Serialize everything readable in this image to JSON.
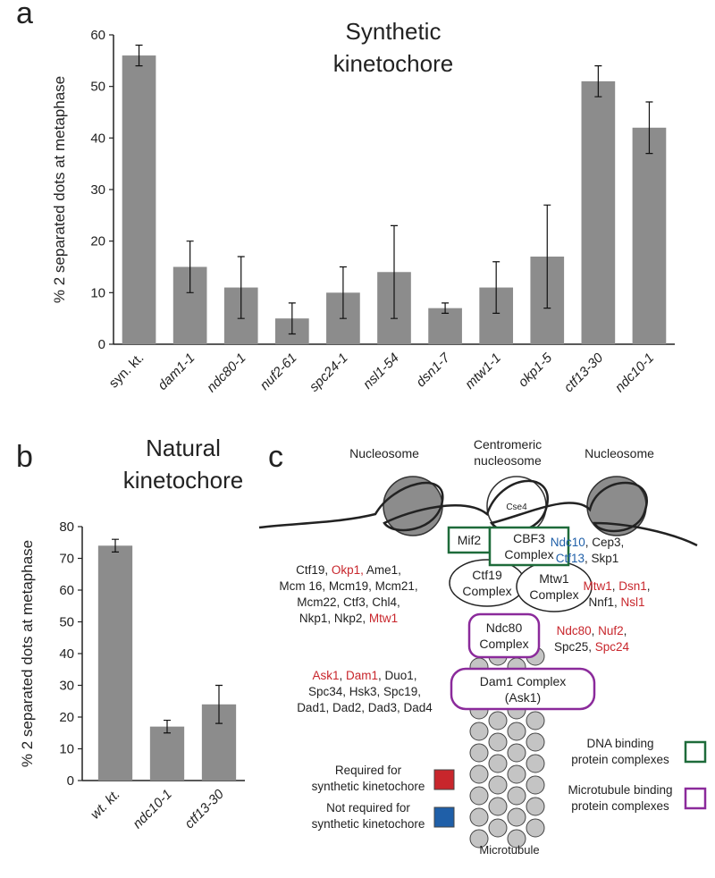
{
  "chart_data": [
    {
      "type": "bar",
      "panel": "a",
      "title": [
        "Synthetic",
        "kinetochore"
      ],
      "y_label": "% 2 separated dots at metaphase",
      "categories": [
        "syn. kt.",
        "dam1-1",
        "ndc80-1",
        "nuf2-61",
        "spc24-1",
        "nsl1-54",
        "dsn1-7",
        "mtw1-1",
        "okp1-5",
        "ctf13-30",
        "ndc10-1"
      ],
      "values": [
        56,
        15,
        11,
        5,
        10,
        14,
        7,
        11,
        17,
        51,
        42
      ],
      "errors": [
        2,
        5,
        6,
        3,
        5,
        9,
        1,
        5,
        10,
        3,
        5
      ],
      "color": "#8c8c8c",
      "ylim": [
        0,
        60
      ],
      "yticks": [
        0,
        10,
        20,
        30,
        40,
        50,
        60
      ]
    },
    {
      "type": "bar",
      "panel": "b",
      "title": [
        "Natural",
        "kinetochore"
      ],
      "y_label": "% 2 separated dots at metaphase",
      "categories": [
        "wt. kt.",
        "ndc10-1",
        "ctf13-30"
      ],
      "values": [
        74,
        17,
        24
      ],
      "errors": [
        2,
        2,
        6
      ],
      "color": "#8c8c8c",
      "ylim": [
        0,
        80
      ],
      "yticks": [
        0,
        10,
        20,
        30,
        40,
        50,
        60,
        70,
        80
      ]
    }
  ],
  "diagram": {
    "panel": "c",
    "headers": {
      "left": "Nucleosome",
      "center": [
        "Centromeric",
        "nucleosome"
      ],
      "right": "Nucleosome"
    },
    "histone": "Cse4",
    "complexes": {
      "mif2": "Mif2",
      "cbf3": [
        "CBF3",
        "Complex"
      ],
      "ctf19": [
        "Ctf19",
        "Complex"
      ],
      "mtw1": [
        "Mtw1",
        "Complex"
      ],
      "ndc80": [
        "Ndc80",
        "Complex"
      ],
      "dam1": [
        "Dam1 Complex",
        "(Ask1)"
      ]
    },
    "microtubule": "Microtubule",
    "gene_groups": [
      [
        [
          {
            "text": "Ndc10",
            "color": "#1f5fa8"
          },
          {
            "text": ", Cep3,",
            "color": "#222222"
          }
        ],
        [
          {
            "text": "Ctf13",
            "color": "#1f5fa8"
          },
          {
            "text": ", Skp1",
            "color": "#222222"
          }
        ]
      ],
      [
        [
          {
            "text": "Ctf19, ",
            "color": "#222222"
          },
          {
            "text": "Okp1,",
            "color": "#c8262c"
          },
          {
            "text": " Ame1,",
            "color": "#222222"
          }
        ],
        [
          {
            "text": "Mcm 16, Mcm19, Mcm21,",
            "color": "#222222"
          }
        ],
        [
          {
            "text": "Mcm22, Ctf3, Chl4,",
            "color": "#222222"
          }
        ],
        [
          {
            "text": "Nkp1, Nkp2, ",
            "color": "#222222"
          },
          {
            "text": "Mtw1",
            "color": "#c8262c"
          }
        ]
      ],
      [
        [
          {
            "text": "Mtw1",
            "color": "#c8262c"
          },
          {
            "text": ", ",
            "color": "#222222"
          },
          {
            "text": "Dsn1",
            "color": "#c8262c"
          },
          {
            "text": ",",
            "color": "#222222"
          }
        ],
        [
          {
            "text": "Nnf1, ",
            "color": "#222222"
          },
          {
            "text": "Nsl1",
            "color": "#c8262c"
          }
        ]
      ],
      [
        [
          {
            "text": "Ndc80",
            "color": "#c8262c"
          },
          {
            "text": ", ",
            "color": "#222222"
          },
          {
            "text": "Nuf2",
            "color": "#c8262c"
          },
          {
            "text": ",",
            "color": "#222222"
          }
        ],
        [
          {
            "text": "Spc25, ",
            "color": "#222222"
          },
          {
            "text": "Spc24",
            "color": "#c8262c"
          }
        ]
      ],
      [
        [
          {
            "text": "Ask1",
            "color": "#c8262c"
          },
          {
            "text": ", ",
            "color": "#222222"
          },
          {
            "text": "Dam1",
            "color": "#c8262c"
          },
          {
            "text": ", Duo1,",
            "color": "#222222"
          }
        ],
        [
          {
            "text": "Spc34, Hsk3, Spc19,",
            "color": "#222222"
          }
        ],
        [
          {
            "text": "Dad1, Dad2, Dad3, Dad4",
            "color": "#222222"
          }
        ]
      ]
    ],
    "legend": [
      {
        "label": [
          "Required for",
          "synthetic kinetochore"
        ],
        "color": "#c8262c"
      },
      {
        "label": [
          "Not required for",
          "synthetic kinetochore"
        ],
        "color": "#1f5fa8"
      },
      {
        "label": [
          "DNA binding",
          "protein complexes"
        ],
        "color": "#1e6b3a"
      },
      {
        "label": [
          "Microtubule binding",
          "protein complexes"
        ],
        "color": "#8b2a9b"
      }
    ]
  }
}
